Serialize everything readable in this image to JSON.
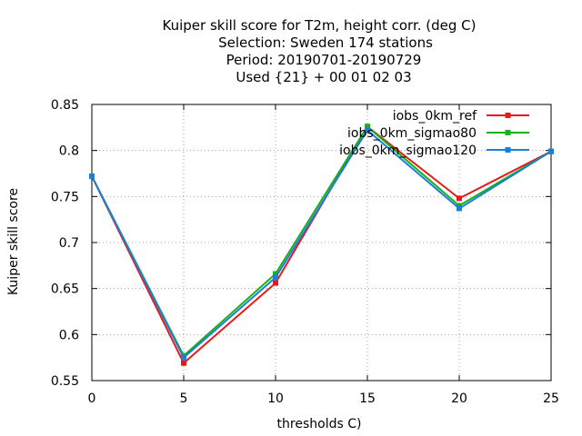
{
  "chart_data": {
    "type": "line",
    "title_lines": [
      "Kuiper skill score  for T2m, height corr. (deg C)",
      "Selection: Sweden    174 stations",
      "Period: 20190701-20190729",
      "Used {21} + 00 01 02 03"
    ],
    "xlabel": "thresholds C)",
    "ylabel": "Kuiper skill score",
    "x": [
      0,
      5,
      10,
      15,
      20,
      25
    ],
    "xlim": [
      0,
      25
    ],
    "ylim": [
      0.55,
      0.85
    ],
    "xticks": [
      "0",
      "5",
      "10",
      "15",
      "20",
      "25"
    ],
    "yticks": [
      "0.55",
      "0.6",
      "0.65",
      "0.7",
      "0.75",
      "0.8",
      "0.85"
    ],
    "grid": true,
    "legend_position": "top-right",
    "series": [
      {
        "name": "iobs_0km_ref",
        "color": "#e8191b",
        "values": [
          0.772,
          0.569,
          0.656,
          0.826,
          0.748,
          0.799
        ]
      },
      {
        "name": "iobs_0km_sigmao80",
        "color": "#19b019",
        "values": [
          0.772,
          0.577,
          0.666,
          0.826,
          0.74,
          0.799
        ]
      },
      {
        "name": "iobs_0km_sigmao120",
        "color": "#1a7fd8",
        "values": [
          0.772,
          0.575,
          0.662,
          0.822,
          0.737,
          0.799
        ]
      }
    ]
  }
}
